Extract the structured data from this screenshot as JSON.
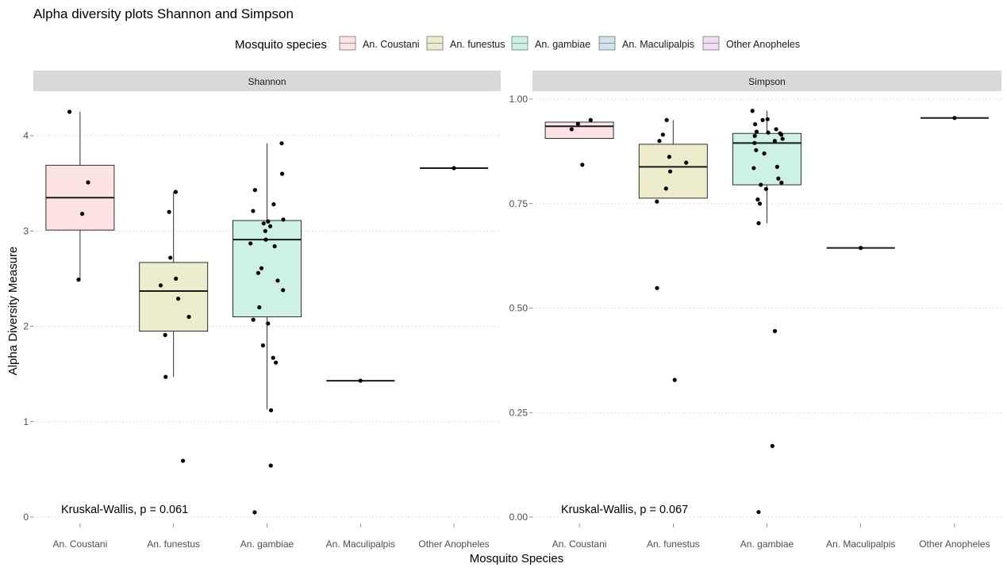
{
  "chart_data": {
    "type": "box",
    "title": "Alpha diversity plots Shannon and Simpson",
    "xlabel": "Mosquito Species",
    "ylabel": "Alpha Diversity Measure",
    "categories": [
      "An. Coustani",
      "An. funestus",
      "An. gambiae",
      "An. Maculipalpis",
      "Other Anopheles"
    ],
    "legend": {
      "title": "Mosquito species",
      "position": "top",
      "items": [
        {
          "label": "An. Coustani",
          "color": "#fde3e3"
        },
        {
          "label": "An. funestus",
          "color": "#edeccd"
        },
        {
          "label": "An. gambiae",
          "color": "#cdf2e5"
        },
        {
          "label": "An. Maculipalpis",
          "color": "#cfe4ef"
        },
        {
          "label": "Other Anopheles",
          "color": "#f1def4"
        }
      ]
    },
    "grid": "horizontal dotted",
    "panels": [
      {
        "label": "Shannon",
        "ylim": [
          0,
          4.3
        ],
        "yticks": [
          "0",
          "1",
          "2",
          "3",
          "4"
        ],
        "annotation": "Kruskal-Wallis, p = 0.061",
        "boxes": [
          {
            "category": "An. Coustani",
            "q1": 3.01,
            "median": 3.35,
            "q3": 3.69,
            "whisker_low": 2.49,
            "whisker_high": 4.25
          },
          {
            "category": "An. funestus",
            "q1": 1.95,
            "median": 2.37,
            "q3": 2.67,
            "whisker_low": 1.47,
            "whisker_high": 3.41
          },
          {
            "category": "An. gambiae",
            "q1": 2.1,
            "median": 2.91,
            "q3": 3.11,
            "whisker_low": 1.13,
            "whisker_high": 3.92
          },
          {
            "category": "An. Maculipalpis",
            "q1": 1.43,
            "median": 1.43,
            "q3": 1.43,
            "whisker_low": 1.43,
            "whisker_high": 1.43
          },
          {
            "category": "Other Anopheles",
            "q1": 3.66,
            "median": 3.66,
            "q3": 3.66,
            "whisker_low": 3.66,
            "whisker_high": 3.66
          }
        ],
        "points": [
          {
            "category": "An. Coustani",
            "values": [
              4.25,
              3.51,
              3.18,
              2.49
            ]
          },
          {
            "category": "An. funestus",
            "values": [
              3.41,
              3.2,
              2.72,
              2.5,
              2.43,
              2.29,
              2.1,
              1.91,
              1.47,
              0.59
            ]
          },
          {
            "category": "An. gambiae",
            "values": [
              3.92,
              3.6,
              3.43,
              3.28,
              3.21,
              3.12,
              3.1,
              3.08,
              3.05,
              3.0,
              2.91,
              2.87,
              2.84,
              2.61,
              2.56,
              2.48,
              2.38,
              2.2,
              2.07,
              2.03,
              1.8,
              1.67,
              1.62,
              1.12,
              0.54,
              0.05
            ]
          },
          {
            "category": "An. Maculipalpis",
            "values": [
              1.43
            ]
          },
          {
            "category": "Other Anopheles",
            "values": [
              3.66
            ]
          }
        ]
      },
      {
        "label": "Simpson",
        "ylim": [
          0,
          1
        ],
        "yticks": [
          "0.00",
          "0.25",
          "0.50",
          "0.75",
          "1.00"
        ],
        "annotation": "Kruskal-Wallis, p = 0.067",
        "boxes": [
          {
            "category": "An. Coustani",
            "q1": 0.906,
            "median": 0.935,
            "q3": 0.945,
            "whisker_low": 0.906,
            "whisker_high": 0.945
          },
          {
            "category": "An. funestus",
            "q1": 0.763,
            "median": 0.838,
            "q3": 0.892,
            "whisker_low": 0.763,
            "whisker_high": 0.95
          },
          {
            "category": "An. gambiae",
            "q1": 0.795,
            "median": 0.895,
            "q3": 0.918,
            "whisker_low": 0.703,
            "whisker_high": 0.972
          }
        ],
        "medians_only": [
          {
            "category": "An. Maculipalpis",
            "value": 0.644
          },
          {
            "category": "Other Anopheles",
            "value": 0.955
          }
        ],
        "points": [
          {
            "category": "An. Coustani",
            "values": [
              0.95,
              0.941,
              0.928,
              0.843
            ]
          },
          {
            "category": "An. funestus",
            "values": [
              0.95,
              0.915,
              0.9,
              0.862,
              0.848,
              0.827,
              0.786,
              0.755,
              0.548,
              0.328
            ]
          },
          {
            "category": "An. gambiae",
            "values": [
              0.972,
              0.952,
              0.95,
              0.94,
              0.928,
              0.922,
              0.92,
              0.918,
              0.915,
              0.912,
              0.905,
              0.9,
              0.895,
              0.878,
              0.87,
              0.838,
              0.835,
              0.81,
              0.8,
              0.795,
              0.785,
              0.76,
              0.75,
              0.703,
              0.445,
              0.17,
              0.012
            ]
          },
          {
            "category": "An. Maculipalpis",
            "values": [
              0.644
            ]
          },
          {
            "category": "Other Anopheles",
            "values": [
              0.955
            ]
          }
        ]
      }
    ]
  }
}
